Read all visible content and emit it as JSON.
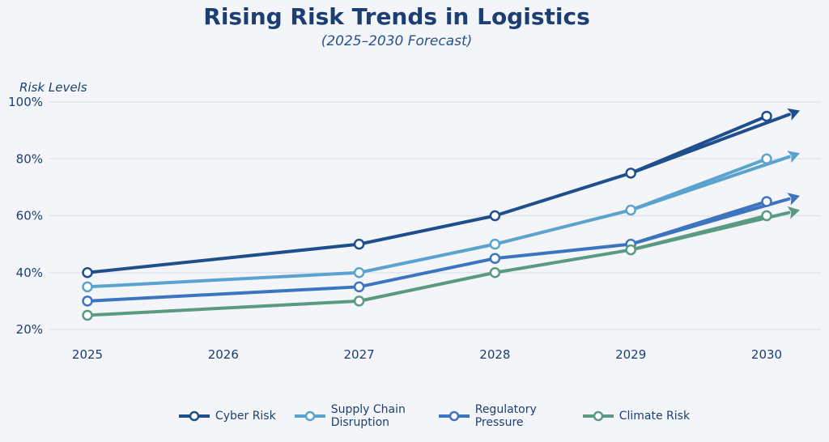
{
  "chart_data": {
    "type": "line",
    "title": "Rising Risk Trends in Logistics",
    "subtitle": "(2025–2030 Forecast)",
    "ylabel": "Risk Levels",
    "xlabel": "",
    "x_ticks": [
      "2025",
      "2026",
      "2027",
      "2028",
      "2029",
      "2030"
    ],
    "y_ticks": [
      "20%",
      "40%",
      "60%",
      "80%",
      "100%"
    ],
    "xlim": [
      2024.7,
      2030.4
    ],
    "ylim": [
      15,
      103
    ],
    "grid": "horizontal",
    "legend_position": "bottom-center",
    "x": [
      2025,
      2027,
      2028,
      2029,
      2030
    ],
    "series": [
      {
        "name": "Cyber Risk",
        "color": "#1f4e8c",
        "values": [
          40,
          50,
          60,
          75,
          95
        ],
        "trend_arrow_to": 97
      },
      {
        "name": "Supply Chain Disruption",
        "color": "#5ba3cf",
        "values": [
          35,
          40,
          50,
          62,
          80
        ],
        "trend_arrow_to": 82
      },
      {
        "name": "Regulatory Pressure",
        "color": "#3d74c0",
        "values": [
          30,
          35,
          45,
          50,
          65
        ],
        "trend_arrow_to": 67
      },
      {
        "name": "Climate Risk",
        "color": "#5a9a82",
        "values": [
          25,
          30,
          40,
          48,
          60
        ],
        "trend_arrow_to": 62
      }
    ]
  },
  "colors": {
    "background": "#f3f5f8",
    "grid": "#dde3ec",
    "text": "#1c3f73"
  }
}
